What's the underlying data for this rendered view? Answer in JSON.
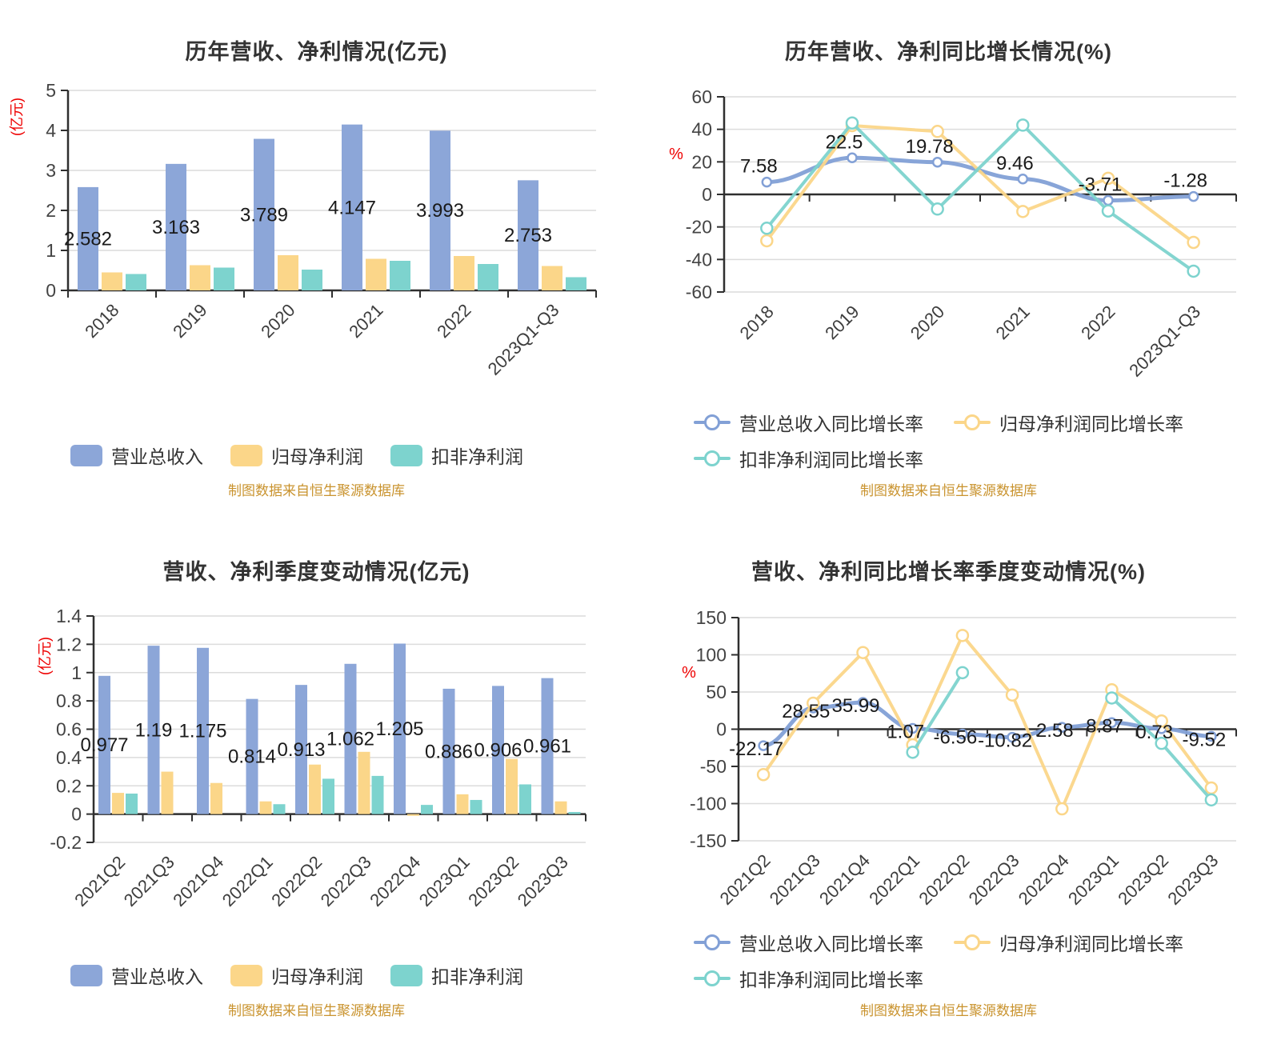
{
  "source_note": "制图数据来自恒生聚源数据库",
  "colors": {
    "revenue": "#8CA6D8",
    "net_profit": "#FBD689",
    "deducted_profit": "#7DD3CE",
    "line_revenue": "#82A0D6",
    "title_text": "#333333",
    "axis_line": "#2F2F2F",
    "grid_line": "#DCDCDC",
    "tick_text": "#444444",
    "category_text": "#3D3D3D",
    "axis_unit": "#EE0000",
    "data_label": "#1A1A1A",
    "source_note_text": "#C9932E",
    "legend_text": "#333333"
  },
  "chart_data": [
    {
      "id": "annual-performance",
      "type": "bar",
      "title": "历年营收、净利情况(亿元)",
      "unit": "(亿元)",
      "grid": true,
      "legend_position": "bottom",
      "categories": [
        "2018",
        "2019",
        "2020",
        "2021",
        "2022",
        "2023Q1-Q3"
      ],
      "ylim": [
        0,
        5
      ],
      "yticks": [
        "0",
        "1",
        "2",
        "3",
        "4",
        "5"
      ],
      "series": [
        {
          "key": "revenue",
          "name": "营业总收入",
          "color": "#8CA6D8",
          "values": [
            2.582,
            3.163,
            3.789,
            4.147,
            3.993,
            2.753
          ],
          "labels": [
            "2.582",
            "3.163",
            "3.789",
            "4.147",
            "3.993",
            "2.753"
          ]
        },
        {
          "key": "net-profit",
          "name": "归母净利润",
          "color": "#FBD689",
          "values": [
            0.45,
            0.63,
            0.88,
            0.79,
            0.86,
            0.61
          ]
        },
        {
          "key": "deducted-profit",
          "name": "扣非净利润",
          "color": "#7DD3CE",
          "values": [
            0.41,
            0.57,
            0.52,
            0.74,
            0.66,
            0.33
          ]
        }
      ]
    },
    {
      "id": "annual-growth",
      "type": "line",
      "title": "历年营收、净利同比增长情况(%)",
      "unit": "%",
      "grid": true,
      "legend_position": "bottom",
      "categories": [
        "2018",
        "2019",
        "2020",
        "2021",
        "2022",
        "2023Q1-Q3"
      ],
      "ylim": [
        -60,
        60
      ],
      "yticks": [
        "-60",
        "-40",
        "-20",
        "0",
        "20",
        "40",
        "60"
      ],
      "series": [
        {
          "key": "revenue-growth",
          "name": "营业总收入同比增长率",
          "color": "#82A0D6",
          "smooth": true,
          "values": [
            7.58,
            22.5,
            19.78,
            9.46,
            -3.71,
            -1.28
          ],
          "labels": [
            "7.58",
            "22.5",
            "19.78",
            "9.46",
            "-3.71",
            "-1.28"
          ]
        },
        {
          "key": "net-profit-growth",
          "name": "归母净利润同比增长率",
          "color": "#FBD689",
          "smooth": false,
          "values": [
            -28.5,
            42.3,
            38.7,
            -10.5,
            9.9,
            -29.5
          ]
        },
        {
          "key": "deducted-profit-growth",
          "name": "扣非净利润同比增长率",
          "color": "#7DD3CE",
          "smooth": false,
          "values": [
            -20.8,
            43.9,
            -9,
            42.6,
            -10.2,
            -47.2
          ]
        }
      ]
    },
    {
      "id": "quarterly-performance",
      "type": "bar",
      "title": "营收、净利季度变动情况(亿元)",
      "unit": "(亿元)",
      "grid": true,
      "legend_position": "bottom",
      "categories": [
        "2021Q2",
        "2021Q3",
        "2021Q4",
        "2022Q1",
        "2022Q2",
        "2022Q3",
        "2022Q4",
        "2023Q1",
        "2023Q2",
        "2023Q3"
      ],
      "ylim": [
        -0.2,
        1.4
      ],
      "yticks": [
        "-0.2",
        "0",
        "0.2",
        "0.4",
        "0.6",
        "0.8",
        "1",
        "1.2",
        "1.4"
      ],
      "series": [
        {
          "key": "revenue",
          "name": "营业总收入",
          "color": "#8CA6D8",
          "values": [
            0.977,
            1.19,
            1.175,
            0.814,
            0.913,
            1.062,
            1.205,
            0.886,
            0.906,
            0.961
          ],
          "labels": [
            "0.977",
            "1.19",
            "1.175",
            "0.814",
            "0.913",
            "1.062",
            "1.205",
            "0.886",
            "0.906",
            "0.961"
          ]
        },
        {
          "key": "net-profit",
          "name": "归母净利润",
          "color": "#FBD689",
          "values": [
            0.15,
            0.3,
            0.22,
            0.09,
            0.35,
            0.44,
            -0.012,
            0.14,
            0.39,
            0.09
          ]
        },
        {
          "key": "deducted-profit",
          "name": "扣非净利润",
          "color": "#7DD3CE",
          "values": [
            0.145,
            0,
            0,
            0.07,
            0.25,
            0.27,
            0.065,
            0.1,
            0.21,
            0.015
          ]
        }
      ]
    },
    {
      "id": "quarterly-growth",
      "type": "line",
      "title": "营收、净利同比增长率季度变动情况(%)",
      "unit": "%",
      "grid": true,
      "legend_position": "bottom",
      "categories": [
        "2021Q2",
        "2021Q3",
        "2021Q4",
        "2022Q1",
        "2022Q2",
        "2022Q3",
        "2022Q4",
        "2023Q1",
        "2023Q2",
        "2023Q3"
      ],
      "ylim": [
        -150,
        150
      ],
      "yticks": [
        "-150",
        "-100",
        "-50",
        "0",
        "50",
        "100",
        "150"
      ],
      "series": [
        {
          "key": "revenue-growth",
          "name": "营业总收入同比增长率",
          "color": "#82A0D6",
          "smooth": true,
          "values": [
            -22.17,
            28.55,
            35.99,
            1.07,
            -6.56,
            -10.82,
            2.58,
            8.87,
            0.73,
            -9.52
          ],
          "labels": [
            "-22.17",
            "28.55",
            "35.99",
            "1.07",
            "-6.56",
            "-10.82",
            "2.58",
            "8.87",
            "0.73",
            "-9.52"
          ]
        },
        {
          "key": "net-profit-growth",
          "name": "归母净利润同比增长率",
          "color": "#FBD689",
          "smooth": false,
          "values": [
            -61,
            35,
            103,
            -21,
            126,
            46,
            -107,
            53,
            11,
            -79
          ]
        },
        {
          "key": "deducted-profit-growth",
          "name": "扣非净利润同比增长率",
          "color": "#7DD3CE",
          "smooth": false,
          "values": [
            null,
            null,
            null,
            -31,
            76,
            null,
            null,
            42,
            -19,
            -95
          ]
        }
      ]
    }
  ]
}
